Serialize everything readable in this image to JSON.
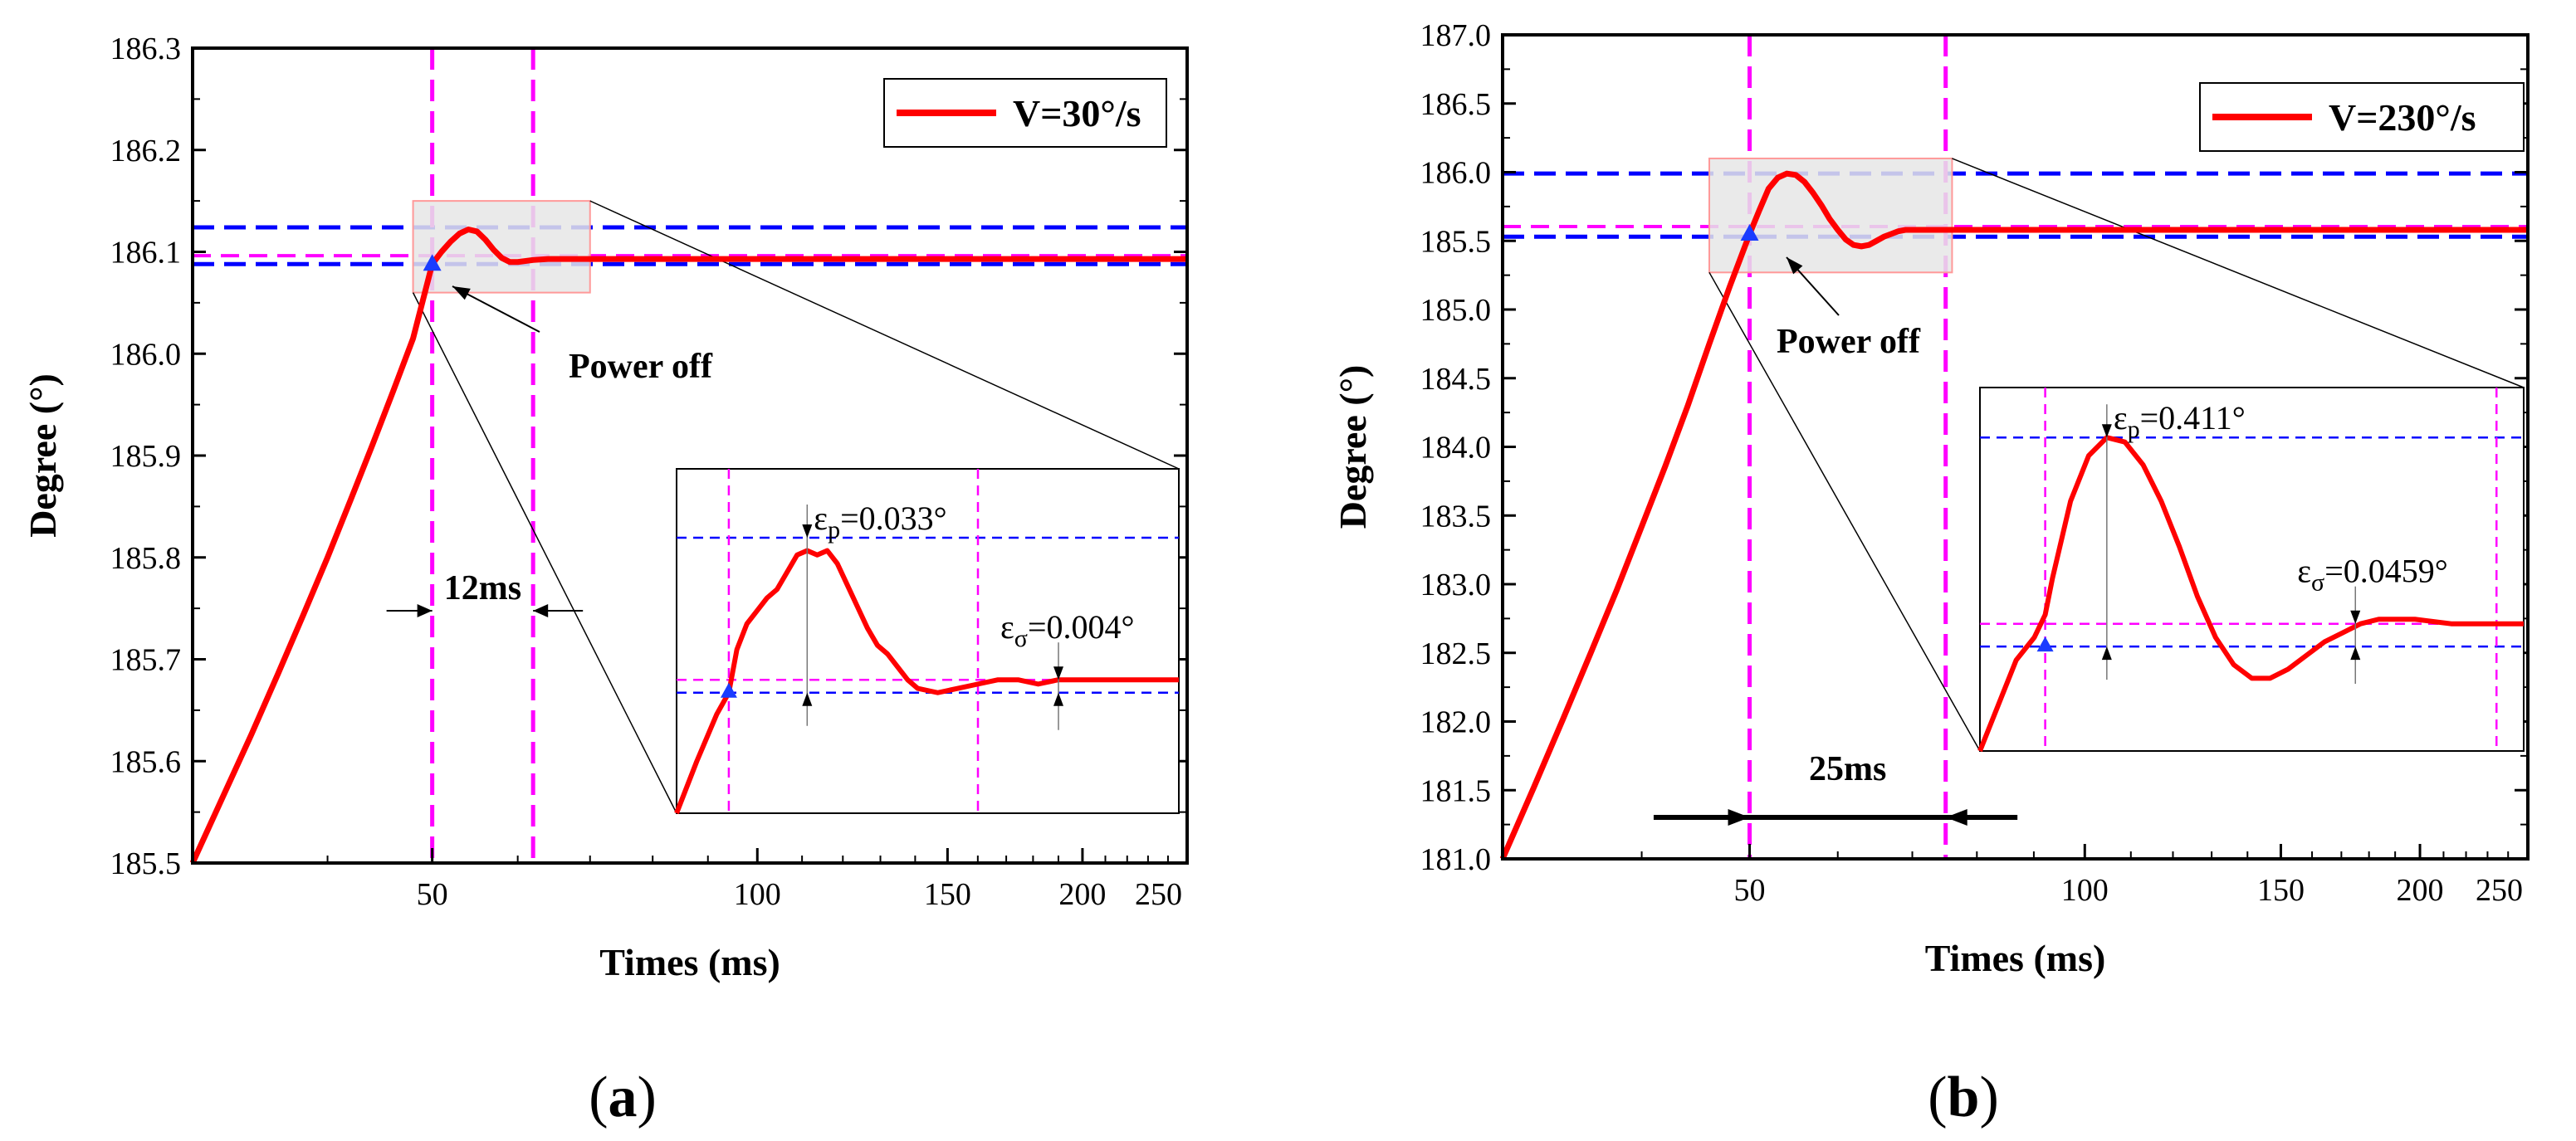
{
  "figure": {
    "caption_a": "a",
    "caption_b": "b"
  },
  "colors": {
    "series": "#ff0000",
    "blue_dash": "#0000ff",
    "magenta_dash": "#ff00ff",
    "marker": "#1a3cff",
    "zoom_fill": "#e6e6e6",
    "zoom_edge": "#ff9999"
  },
  "chart_data": [
    {
      "type": "line",
      "panel": "a",
      "xlabel": "Times (ms)",
      "ylabel": "Degree (°)",
      "xscale": "log",
      "xlim": [
        30,
        250
      ],
      "ylim": [
        185.5,
        186.3
      ],
      "xticks": [
        50,
        100,
        150,
        200,
        250
      ],
      "yticks": [
        185.5,
        185.6,
        185.7,
        185.8,
        185.9,
        186.0,
        186.1,
        186.2,
        186.3
      ],
      "ytick_labels": [
        "185.5",
        "185.6",
        "185.7",
        "185.8",
        "185.9",
        "186.0",
        "186.1",
        "186.2",
        "186.3"
      ],
      "legend": {
        "label": "V=30°/s",
        "position": "top-right"
      },
      "series": [
        {
          "name": "V=30°/s",
          "x": [
            30,
            32,
            34,
            36,
            38,
            40,
            42,
            44,
            46,
            48,
            50,
            51,
            52,
            53,
            54,
            55,
            56,
            57,
            58,
            59,
            60,
            62,
            64,
            66,
            68,
            70,
            75,
            80,
            90,
            100,
            120,
            150,
            200,
            250
          ],
          "y": [
            185.5,
            185.565,
            185.626,
            185.686,
            185.744,
            185.8,
            185.856,
            185.91,
            185.963,
            186.015,
            186.088,
            186.1,
            186.11,
            186.118,
            186.122,
            186.12,
            186.112,
            186.102,
            186.094,
            186.09,
            186.09,
            186.092,
            186.093,
            186.093,
            186.093,
            186.093,
            186.093,
            186.093,
            186.093,
            186.093,
            186.093,
            186.093,
            186.093,
            186.093
          ]
        }
      ],
      "reference_lines": {
        "blue_horizontal": [
          186.124,
          186.088
        ],
        "magenta_horizontal": [
          186.093
        ],
        "magenta_vertical": [
          50,
          62
        ]
      },
      "marker": {
        "x": 50,
        "y": 186.088
      },
      "zoom_box": {
        "x": [
          48,
          70
        ],
        "y": [
          186.06,
          186.15
        ]
      },
      "annotations": {
        "power_off": "Power off",
        "interval": "12ms",
        "eps_p": "=0.033°",
        "eps_sigma": "=0.004°"
      },
      "inset": {
        "x": [
          47,
          72
        ],
        "y": [
          186.06,
          186.14
        ],
        "series_x": [
          47,
          48,
          49,
          49.6,
          50,
          50.5,
          51,
          51.5,
          52,
          52.5,
          53,
          53.5,
          54,
          54.5,
          55,
          55.5,
          56,
          56.5,
          57,
          57.5,
          58,
          58.5,
          59,
          60,
          61,
          62,
          63,
          64,
          65,
          66,
          67,
          68,
          69,
          70,
          71,
          72
        ],
        "series_y": [
          186.06,
          186.072,
          186.083,
          186.088,
          186.098,
          186.104,
          186.107,
          186.11,
          186.112,
          186.116,
          186.12,
          186.121,
          186.12,
          186.121,
          186.118,
          186.113,
          186.108,
          186.103,
          186.099,
          186.097,
          186.094,
          186.091,
          186.089,
          186.088,
          186.089,
          186.09,
          186.091,
          186.091,
          186.09,
          186.091,
          186.091,
          186.091,
          186.091,
          186.091,
          186.091,
          186.091
        ],
        "blue_horizontal": [
          186.124,
          186.088
        ],
        "magenta_horizontal": [
          186.091
        ],
        "magenta_vertical": [
          49.6,
          62
        ]
      }
    },
    {
      "type": "line",
      "panel": "b",
      "xlabel": "Times (ms)",
      "ylabel": "Degree (°)",
      "xscale": "log",
      "xlim": [
        30,
        250
      ],
      "ylim": [
        181.0,
        187.0
      ],
      "xticks": [
        50,
        100,
        150,
        200,
        250
      ],
      "yticks": [
        181.0,
        181.5,
        182.0,
        182.5,
        183.0,
        183.5,
        184.0,
        184.5,
        185.0,
        185.5,
        186.0,
        186.5,
        187.0
      ],
      "ytick_labels": [
        "181.0",
        "181.5",
        "182.0",
        "182.5",
        "183.0",
        "183.5",
        "184.0",
        "184.5",
        "185.0",
        "185.5",
        "186.0",
        "186.5",
        "187.0"
      ],
      "legend": {
        "label": "V=230°/s",
        "position": "top-right"
      },
      "series": [
        {
          "name": "V=230°/s",
          "x": [
            30,
            32,
            34,
            36,
            38,
            40,
            42,
            44,
            46,
            48,
            50,
            51,
            52,
            53,
            54,
            55,
            56,
            57,
            58,
            59,
            60,
            61,
            62,
            63,
            64,
            65,
            66,
            67,
            68,
            69,
            70,
            71,
            72,
            73,
            74,
            75,
            76,
            78,
            80,
            90,
            100,
            120,
            150,
            200,
            250
          ],
          "y": [
            181.0,
            181.52,
            182.02,
            182.5,
            182.96,
            183.42,
            183.86,
            184.3,
            184.75,
            185.17,
            185.55,
            185.72,
            185.88,
            185.96,
            185.99,
            185.98,
            185.93,
            185.85,
            185.76,
            185.66,
            185.58,
            185.51,
            185.47,
            185.46,
            185.47,
            185.5,
            185.53,
            185.55,
            185.57,
            185.58,
            185.58,
            185.58,
            185.58,
            185.58,
            185.58,
            185.58,
            185.58,
            185.58,
            185.58,
            185.58,
            185.58,
            185.58,
            185.58,
            185.58,
            185.58
          ]
        }
      ],
      "reference_lines": {
        "blue_horizontal": [
          185.99,
          185.53
        ],
        "magenta_horizontal": [
          185.58
        ],
        "magenta_vertical": [
          50,
          75
        ]
      },
      "marker": {
        "x": 50,
        "y": 185.55
      },
      "zoom_box": {
        "x": [
          46,
          76
        ],
        "y": [
          185.27,
          186.1
        ]
      },
      "annotations": {
        "power_off": "Power off",
        "interval": "25ms",
        "eps_p": "=0.411°",
        "eps_sigma": "=0.0459°"
      },
      "inset": {
        "x": [
          46,
          76
        ],
        "y": [
          185.3,
          186.1
        ],
        "series_x": [
          46,
          47,
          48,
          49,
          49.6,
          50,
          51,
          52,
          53,
          54,
          55,
          56,
          57,
          58,
          59,
          60,
          61,
          62,
          63,
          64,
          65,
          66,
          67,
          68,
          69,
          70,
          71,
          72,
          73,
          74,
          75,
          76
        ],
        "series_y": [
          185.3,
          185.4,
          185.5,
          185.55,
          185.6,
          185.68,
          185.85,
          185.95,
          185.99,
          185.98,
          185.93,
          185.85,
          185.75,
          185.64,
          185.55,
          185.49,
          185.46,
          185.46,
          185.48,
          185.51,
          185.54,
          185.56,
          185.58,
          185.59,
          185.59,
          185.59,
          185.585,
          185.58,
          185.58,
          185.58,
          185.58,
          185.58
        ],
        "blue_horizontal": [
          185.99,
          185.53
        ],
        "magenta_horizontal": [
          185.58
        ],
        "magenta_vertical": [
          49.6,
          74.5
        ]
      }
    }
  ]
}
